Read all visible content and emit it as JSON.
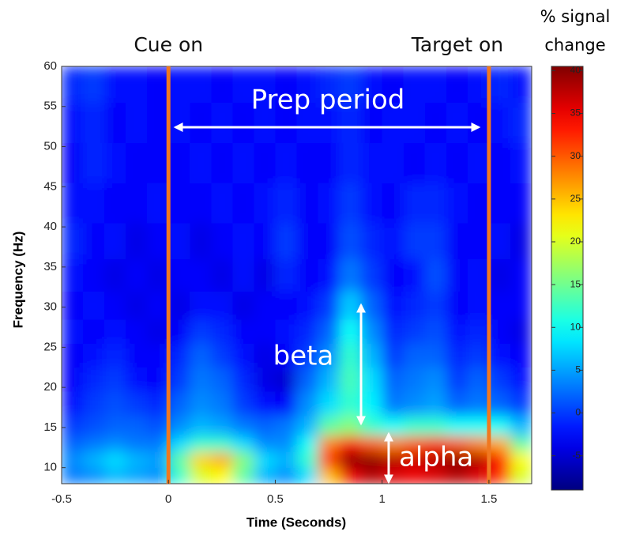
{
  "chart_data": {
    "type": "heatmap",
    "xlabel": "Time (Seconds)",
    "ylabel": "Frequency (Hz)",
    "colormap": "jet",
    "xlim": [
      -0.5,
      1.7
    ],
    "ylim": [
      8,
      60
    ],
    "xticks": [
      -0.5,
      0,
      0.5,
      1,
      1.5
    ],
    "yticks": [
      10,
      15,
      20,
      25,
      30,
      35,
      40,
      45,
      50,
      55,
      60
    ],
    "x": [
      -0.45,
      -0.35,
      -0.25,
      -0.15,
      -0.05,
      0.05,
      0.15,
      0.25,
      0.35,
      0.45,
      0.55,
      0.65,
      0.75,
      0.85,
      0.95,
      1.05,
      1.15,
      1.25,
      1.35,
      1.45,
      1.55,
      1.65
    ],
    "y": [
      9,
      11,
      13,
      15,
      18,
      21,
      24,
      27,
      30,
      34,
      38,
      43,
      48,
      53,
      58
    ],
    "z": [
      [
        3,
        4,
        6,
        5,
        4,
        12,
        20,
        22,
        14,
        6,
        4,
        8,
        25,
        35,
        38,
        36,
        35,
        36,
        38,
        36,
        32,
        20
      ],
      [
        4,
        6,
        8,
        6,
        5,
        14,
        24,
        26,
        16,
        8,
        6,
        12,
        32,
        40,
        40,
        38,
        37,
        38,
        40,
        38,
        34,
        22
      ],
      [
        2,
        3,
        4,
        3,
        3,
        8,
        12,
        12,
        8,
        4,
        4,
        10,
        28,
        34,
        30,
        28,
        30,
        32,
        30,
        28,
        26,
        14
      ],
      [
        0,
        1,
        2,
        2,
        1,
        4,
        6,
        5,
        3,
        2,
        3,
        6,
        14,
        16,
        12,
        10,
        12,
        12,
        10,
        10,
        10,
        6
      ],
      [
        -2,
        0,
        1,
        0,
        -1,
        2,
        4,
        3,
        0,
        -2,
        -3,
        4,
        8,
        12,
        9,
        3,
        4,
        5,
        2,
        3,
        2,
        0
      ],
      [
        -3,
        -1,
        0,
        -2,
        -3,
        0,
        3,
        2,
        -1,
        -4,
        -5,
        2,
        6,
        13,
        8,
        2,
        3,
        4,
        0,
        2,
        0,
        -2
      ],
      [
        -3,
        -2,
        -1,
        -3,
        -3,
        -1,
        2,
        0,
        -2,
        -4,
        -3,
        0,
        4,
        12,
        6,
        0,
        2,
        2,
        -1,
        0,
        -2,
        -3
      ],
      [
        -2,
        -3,
        -2,
        -3,
        -4,
        -3,
        0,
        -1,
        -3,
        -3,
        -2,
        -1,
        2,
        10,
        4,
        -1,
        0,
        1,
        -2,
        -1,
        -3,
        -4
      ],
      [
        -3,
        -2,
        -3,
        -4,
        -3,
        -4,
        -2,
        -2,
        -4,
        -3,
        -3,
        -2,
        0,
        7,
        2,
        -2,
        -1,
        0,
        -3,
        -2,
        -3,
        -3
      ],
      [
        -2,
        -3,
        -4,
        -3,
        -4,
        -3,
        -3,
        -4,
        -2,
        -4,
        -1,
        -3,
        -2,
        3,
        0,
        -3,
        -2,
        1,
        -3,
        -2,
        -4,
        -3
      ],
      [
        -1,
        -3,
        -2,
        -4,
        -3,
        -2,
        -4,
        -3,
        -2,
        -3,
        0,
        -3,
        -3,
        1,
        -1,
        -2,
        0,
        0,
        -3,
        -3,
        -2,
        -4
      ],
      [
        -2,
        -2,
        -3,
        -3,
        -2,
        -3,
        -3,
        -2,
        -3,
        -2,
        -1,
        -3,
        -2,
        0,
        -2,
        -3,
        -1,
        -1,
        -2,
        -3,
        -3,
        -3
      ],
      [
        -3,
        -1,
        -2,
        -3,
        -3,
        -3,
        -2,
        -3,
        -2,
        -3,
        -2,
        -3,
        -3,
        -1,
        -2,
        -2,
        -3,
        -2,
        -3,
        -2,
        -3,
        -2
      ],
      [
        -2,
        -1,
        -3,
        -2,
        -3,
        -2,
        -3,
        -2,
        -3,
        -2,
        -3,
        -2,
        -2,
        -1,
        -3,
        -2,
        -2,
        -3,
        -2,
        -3,
        -2,
        -1
      ],
      [
        -1,
        0,
        -2,
        -2,
        -3,
        -2,
        -2,
        -3,
        -2,
        -2,
        -3,
        -2,
        -1,
        0,
        -2,
        -3,
        -2,
        -2,
        -3,
        -2,
        -1,
        -2
      ]
    ],
    "colorbar": {
      "title": [
        "% signal",
        "change"
      ],
      "clim": [
        -9,
        40.5
      ],
      "ticks": [
        -5,
        0,
        5,
        10,
        15,
        20,
        25,
        30,
        35,
        40
      ]
    },
    "event_lines": [
      {
        "x": 0,
        "label": "Cue on",
        "color": "#f07820"
      },
      {
        "x": 1.5,
        "label": "Target on",
        "color": "#f07820"
      }
    ],
    "annotations": [
      "Prep period",
      "beta",
      "alpha"
    ]
  }
}
